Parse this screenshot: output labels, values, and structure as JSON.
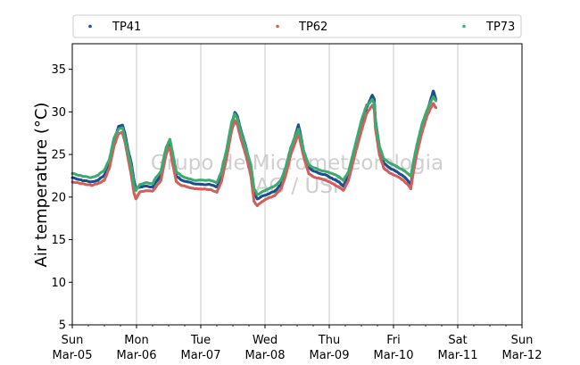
{
  "chart_data": {
    "type": "scatter",
    "ylabel": "Air temperature (°C)",
    "xlabel": "",
    "ylim": [
      5,
      38
    ],
    "yticks": [
      5,
      10,
      15,
      20,
      25,
      30,
      35
    ],
    "xlim": [
      0,
      7
    ],
    "x_unit": "days since Sun Mar-05 00:00",
    "xticks": [
      {
        "day": "Sun",
        "date": "Mar-05"
      },
      {
        "day": "Mon",
        "date": "Mar-06"
      },
      {
        "day": "Tue",
        "date": "Mar-07"
      },
      {
        "day": "Wed",
        "date": "Mar-08"
      },
      {
        "day": "Thu",
        "date": "Mar-09"
      },
      {
        "day": "Fri",
        "date": "Mar-10"
      },
      {
        "day": "Sat",
        "date": "Mar-11"
      },
      {
        "day": "Sun",
        "date": "Mar-12"
      }
    ],
    "grid": "vertical",
    "legend_position": "top, outside, 3 columns",
    "watermark": [
      "Grupo de Micrometeorologia",
      "IAG / USP"
    ],
    "series": [
      {
        "name": "TP41",
        "color": "#1f4e8c",
        "points": [
          [
            0.0,
            22.3
          ],
          [
            0.15,
            22.0
          ],
          [
            0.3,
            21.8
          ],
          [
            0.4,
            22.0
          ],
          [
            0.5,
            22.6
          ],
          [
            0.58,
            24.0
          ],
          [
            0.65,
            26.5
          ],
          [
            0.72,
            28.3
          ],
          [
            0.78,
            28.5
          ],
          [
            0.82,
            27.5
          ],
          [
            0.87,
            25.5
          ],
          [
            0.92,
            24.0
          ],
          [
            0.96,
            22.0
          ],
          [
            0.99,
            21.0
          ],
          [
            1.05,
            21.2
          ],
          [
            1.15,
            21.3
          ],
          [
            1.25,
            21.2
          ],
          [
            1.3,
            21.8
          ],
          [
            1.38,
            22.5
          ],
          [
            1.42,
            24.0
          ],
          [
            1.46,
            25.5
          ],
          [
            1.5,
            26.3
          ],
          [
            1.52,
            26.5
          ],
          [
            1.56,
            25.0
          ],
          [
            1.62,
            22.5
          ],
          [
            1.7,
            22.0
          ],
          [
            1.8,
            21.8
          ],
          [
            1.9,
            21.6
          ],
          [
            2.0,
            21.5
          ],
          [
            2.15,
            21.5
          ],
          [
            2.25,
            21.2
          ],
          [
            2.32,
            22.5
          ],
          [
            2.4,
            25.0
          ],
          [
            2.48,
            28.5
          ],
          [
            2.53,
            30.0
          ],
          [
            2.57,
            29.5
          ],
          [
            2.62,
            28.0
          ],
          [
            2.7,
            26.0
          ],
          [
            2.78,
            23.5
          ],
          [
            2.83,
            20.5
          ],
          [
            2.88,
            19.8
          ],
          [
            2.95,
            20.1
          ],
          [
            3.05,
            20.4
          ],
          [
            3.15,
            20.7
          ],
          [
            3.25,
            21.5
          ],
          [
            3.32,
            23.0
          ],
          [
            3.4,
            25.5
          ],
          [
            3.46,
            27.0
          ],
          [
            3.52,
            28.5
          ],
          [
            3.55,
            27.5
          ],
          [
            3.6,
            25.5
          ],
          [
            3.68,
            23.5
          ],
          [
            3.75,
            23.1
          ],
          [
            3.85,
            22.8
          ],
          [
            3.95,
            22.6
          ],
          [
            4.05,
            22.2
          ],
          [
            4.15,
            21.8
          ],
          [
            4.22,
            21.3
          ],
          [
            4.3,
            22.5
          ],
          [
            4.4,
            25.5
          ],
          [
            4.5,
            28.5
          ],
          [
            4.58,
            30.5
          ],
          [
            4.64,
            31.5
          ],
          [
            4.67,
            32.0
          ],
          [
            4.7,
            31.5
          ],
          [
            4.72,
            29.0
          ],
          [
            4.78,
            26.0
          ],
          [
            4.85,
            24.0
          ],
          [
            4.95,
            23.4
          ],
          [
            5.05,
            23.0
          ],
          [
            5.15,
            22.5
          ],
          [
            5.22,
            22.0
          ],
          [
            5.27,
            21.5
          ],
          [
            5.3,
            23.0
          ],
          [
            5.36,
            25.5
          ],
          [
            5.44,
            28.0
          ],
          [
            5.52,
            30.0
          ],
          [
            5.58,
            31.5
          ],
          [
            5.62,
            32.5
          ],
          [
            5.66,
            31.5
          ]
        ]
      },
      {
        "name": "TP62",
        "color": "#d0605e",
        "points": [
          [
            0.0,
            21.8
          ],
          [
            0.15,
            21.6
          ],
          [
            0.3,
            21.4
          ],
          [
            0.4,
            21.6
          ],
          [
            0.5,
            22.0
          ],
          [
            0.58,
            23.5
          ],
          [
            0.65,
            26.0
          ],
          [
            0.72,
            27.5
          ],
          [
            0.78,
            27.6
          ],
          [
            0.82,
            26.5
          ],
          [
            0.87,
            24.5
          ],
          [
            0.92,
            22.5
          ],
          [
            0.96,
            20.5
          ],
          [
            0.99,
            19.8
          ],
          [
            1.05,
            20.6
          ],
          [
            1.15,
            20.8
          ],
          [
            1.25,
            20.7
          ],
          [
            1.3,
            21.2
          ],
          [
            1.38,
            22.0
          ],
          [
            1.42,
            23.5
          ],
          [
            1.46,
            25.0
          ],
          [
            1.5,
            25.8
          ],
          [
            1.52,
            25.8
          ],
          [
            1.56,
            24.0
          ],
          [
            1.62,
            21.8
          ],
          [
            1.7,
            21.4
          ],
          [
            1.8,
            21.2
          ],
          [
            1.9,
            21.0
          ],
          [
            2.0,
            21.0
          ],
          [
            2.15,
            20.9
          ],
          [
            2.25,
            20.6
          ],
          [
            2.32,
            21.8
          ],
          [
            2.4,
            24.5
          ],
          [
            2.48,
            27.8
          ],
          [
            2.53,
            29.0
          ],
          [
            2.57,
            28.5
          ],
          [
            2.62,
            27.0
          ],
          [
            2.7,
            25.0
          ],
          [
            2.78,
            22.5
          ],
          [
            2.83,
            19.5
          ],
          [
            2.88,
            19.0
          ],
          [
            2.95,
            19.5
          ],
          [
            3.05,
            19.9
          ],
          [
            3.15,
            20.2
          ],
          [
            3.25,
            21.0
          ],
          [
            3.32,
            22.5
          ],
          [
            3.4,
            25.0
          ],
          [
            3.46,
            26.2
          ],
          [
            3.52,
            27.5
          ],
          [
            3.55,
            26.5
          ],
          [
            3.6,
            24.8
          ],
          [
            3.68,
            22.8
          ],
          [
            3.75,
            22.4
          ],
          [
            3.85,
            22.2
          ],
          [
            3.95,
            22.0
          ],
          [
            4.05,
            21.6
          ],
          [
            4.15,
            21.2
          ],
          [
            4.22,
            20.8
          ],
          [
            4.3,
            22.0
          ],
          [
            4.4,
            25.0
          ],
          [
            4.5,
            27.8
          ],
          [
            4.58,
            29.8
          ],
          [
            4.64,
            30.5
          ],
          [
            4.67,
            30.8
          ],
          [
            4.7,
            30.3
          ],
          [
            4.72,
            28.0
          ],
          [
            4.78,
            25.0
          ],
          [
            4.85,
            23.4
          ],
          [
            4.95,
            22.8
          ],
          [
            5.05,
            22.5
          ],
          [
            5.15,
            22.0
          ],
          [
            5.22,
            21.5
          ],
          [
            5.27,
            21.0
          ],
          [
            5.3,
            22.5
          ],
          [
            5.36,
            25.0
          ],
          [
            5.44,
            27.5
          ],
          [
            5.52,
            29.5
          ],
          [
            5.58,
            30.5
          ],
          [
            5.62,
            31.0
          ],
          [
            5.66,
            30.5
          ]
        ]
      },
      {
        "name": "TP73",
        "color": "#3daa6f",
        "points": [
          [
            0.0,
            22.8
          ],
          [
            0.15,
            22.5
          ],
          [
            0.3,
            22.3
          ],
          [
            0.4,
            22.6
          ],
          [
            0.5,
            23.2
          ],
          [
            0.58,
            24.5
          ],
          [
            0.65,
            27.0
          ],
          [
            0.72,
            28.0
          ],
          [
            0.78,
            28.2
          ],
          [
            0.82,
            27.0
          ],
          [
            0.87,
            25.2
          ],
          [
            0.92,
            23.5
          ],
          [
            0.96,
            21.5
          ],
          [
            0.99,
            20.8
          ],
          [
            1.05,
            21.5
          ],
          [
            1.15,
            21.7
          ],
          [
            1.25,
            21.6
          ],
          [
            1.3,
            22.3
          ],
          [
            1.38,
            23.0
          ],
          [
            1.42,
            24.5
          ],
          [
            1.46,
            25.8
          ],
          [
            1.5,
            26.5
          ],
          [
            1.52,
            26.8
          ],
          [
            1.56,
            25.3
          ],
          [
            1.62,
            23.0
          ],
          [
            1.7,
            22.5
          ],
          [
            1.8,
            22.2
          ],
          [
            1.9,
            22.0
          ],
          [
            2.0,
            22.0
          ],
          [
            2.15,
            22.0
          ],
          [
            2.25,
            21.7
          ],
          [
            2.32,
            23.0
          ],
          [
            2.4,
            25.5
          ],
          [
            2.48,
            28.8
          ],
          [
            2.53,
            29.8
          ],
          [
            2.57,
            29.2
          ],
          [
            2.62,
            27.8
          ],
          [
            2.7,
            25.8
          ],
          [
            2.78,
            23.8
          ],
          [
            2.83,
            21.0
          ],
          [
            2.88,
            20.3
          ],
          [
            2.95,
            20.6
          ],
          [
            3.05,
            21.0
          ],
          [
            3.15,
            21.3
          ],
          [
            3.25,
            22.0
          ],
          [
            3.32,
            23.5
          ],
          [
            3.4,
            25.8
          ],
          [
            3.46,
            27.0
          ],
          [
            3.52,
            28.0
          ],
          [
            3.55,
            27.2
          ],
          [
            3.6,
            25.5
          ],
          [
            3.68,
            23.8
          ],
          [
            3.75,
            23.5
          ],
          [
            3.85,
            23.2
          ],
          [
            3.95,
            23.0
          ],
          [
            4.05,
            22.8
          ],
          [
            4.15,
            22.4
          ],
          [
            4.22,
            22.0
          ],
          [
            4.3,
            23.0
          ],
          [
            4.4,
            26.0
          ],
          [
            4.5,
            29.0
          ],
          [
            4.58,
            30.8
          ],
          [
            4.64,
            31.2
          ],
          [
            4.67,
            31.5
          ],
          [
            4.7,
            31.0
          ],
          [
            4.72,
            28.8
          ],
          [
            4.78,
            26.0
          ],
          [
            4.85,
            24.5
          ],
          [
            4.95,
            24.0
          ],
          [
            5.05,
            23.6
          ],
          [
            5.15,
            23.2
          ],
          [
            5.22,
            22.8
          ],
          [
            5.27,
            22.5
          ],
          [
            5.3,
            23.8
          ],
          [
            5.36,
            26.0
          ],
          [
            5.44,
            28.5
          ],
          [
            5.52,
            30.2
          ],
          [
            5.58,
            31.2
          ],
          [
            5.62,
            31.8
          ],
          [
            5.66,
            31.3
          ]
        ]
      }
    ]
  }
}
